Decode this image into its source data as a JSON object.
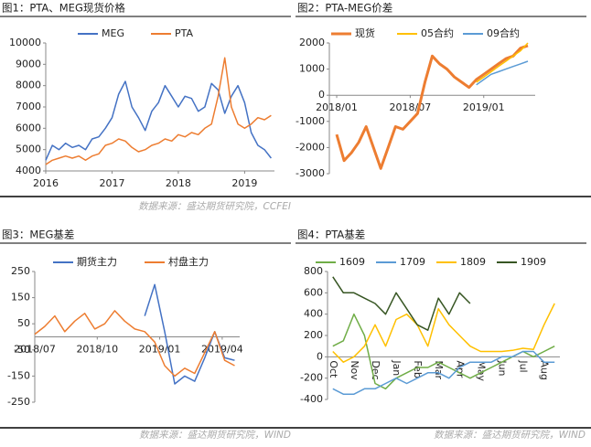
{
  "chart_data": [
    {
      "type": "line",
      "title": "图1：PTA、MEG现货价格",
      "source": "数据来源：盛达期货研究院，CCFEI",
      "x": [
        2016.0,
        2016.1,
        2016.2,
        2016.3,
        2016.4,
        2016.5,
        2016.6,
        2016.7,
        2016.8,
        2016.9,
        2017.0,
        2017.1,
        2017.2,
        2017.3,
        2017.4,
        2017.5,
        2017.6,
        2017.7,
        2017.8,
        2017.9,
        2018.0,
        2018.1,
        2018.2,
        2018.3,
        2018.4,
        2018.5,
        2018.6,
        2018.7,
        2018.8,
        2018.9,
        2019.0,
        2019.1,
        2019.2,
        2019.3,
        2019.4
      ],
      "series": [
        {
          "name": "MEG",
          "color": "#4472c4",
          "values": [
            4500,
            5200,
            5000,
            5300,
            5100,
            5200,
            5000,
            5500,
            5600,
            6000,
            6500,
            7600,
            8200,
            7000,
            6500,
            5900,
            6800,
            7200,
            8000,
            7500,
            7000,
            7500,
            7400,
            6800,
            7000,
            8100,
            7800,
            6700,
            7500,
            8000,
            7200,
            5800,
            5200,
            5000,
            4600
          ]
        },
        {
          "name": "PTA",
          "color": "#ed7d31",
          "values": [
            4300,
            4500,
            4600,
            4700,
            4600,
            4700,
            4500,
            4700,
            4800,
            5200,
            5300,
            5500,
            5400,
            5100,
            4900,
            5000,
            5200,
            5300,
            5500,
            5400,
            5700,
            5600,
            5800,
            5700,
            6000,
            6200,
            7500,
            9300,
            7000,
            6200,
            6000,
            6200,
            6500,
            6400,
            6600
          ]
        }
      ],
      "xlim": [
        2016.0,
        2019.45
      ],
      "xticks": [
        2016,
        2017,
        2018,
        2019
      ],
      "ylim": [
        4000,
        10000
      ],
      "yticks": [
        4000,
        5000,
        6000,
        7000,
        8000,
        9000,
        10000
      ],
      "xaxis_at": "bottom"
    },
    {
      "type": "line",
      "title": "图2：PTA-MEG价差",
      "x": [
        2018.0,
        2018.05,
        2018.1,
        2018.15,
        2018.2,
        2018.25,
        2018.3,
        2018.35,
        2018.4,
        2018.45,
        2018.5,
        2018.55,
        2018.6,
        2018.65,
        2018.7,
        2018.75,
        2018.8,
        2018.85,
        2018.9,
        2018.95,
        2019.0,
        2019.05,
        2019.1,
        2019.15,
        2019.2,
        2019.25,
        2019.3
      ],
      "series": [
        {
          "name": "现货",
          "color": "#ed7d31",
          "line_width": 3,
          "values": [
            -1500,
            -2500,
            -2200,
            -1800,
            -1200,
            -2000,
            -2800,
            -2000,
            -1200,
            -1300,
            -1000,
            -700,
            500,
            1500,
            1200,
            1000,
            700,
            500,
            300,
            600,
            800,
            1000,
            1200,
            1400,
            1500,
            1800,
            1900
          ]
        },
        {
          "name": "05合约",
          "color": "#ffc000",
          "values": [
            null,
            null,
            null,
            null,
            null,
            null,
            null,
            null,
            null,
            null,
            null,
            null,
            null,
            null,
            null,
            null,
            null,
            null,
            null,
            500,
            700,
            900,
            1100,
            1300,
            1500,
            1700,
            2000
          ]
        },
        {
          "name": "09合约",
          "color": "#5b9bd5",
          "values": [
            null,
            null,
            null,
            null,
            null,
            null,
            null,
            null,
            null,
            null,
            null,
            null,
            null,
            null,
            null,
            null,
            null,
            null,
            null,
            400,
            600,
            800,
            900,
            1000,
            1100,
            1200,
            1300
          ]
        }
      ],
      "xlim": [
        2017.95,
        2019.35
      ],
      "xticks": [
        {
          "value": 2018.0,
          "label": "2018/01"
        },
        {
          "value": 2018.5,
          "label": "2018/07"
        },
        {
          "value": 2019.0,
          "label": "2019/01"
        }
      ],
      "ylim": [
        -3000,
        2000
      ],
      "yticks": [
        -3000,
        -2000,
        -1000,
        0,
        1000,
        2000
      ],
      "xaxis_at": "zero"
    },
    {
      "type": "line",
      "title": "图3：MEG基差",
      "source": "数据来源：盛达期货研究院，WIND",
      "x": [
        2018.5,
        2018.54,
        2018.58,
        2018.62,
        2018.66,
        2018.7,
        2018.74,
        2018.78,
        2018.82,
        2018.86,
        2018.9,
        2018.94,
        2018.98,
        2019.02,
        2019.06,
        2019.1,
        2019.14,
        2019.18,
        2019.22,
        2019.26,
        2019.3
      ],
      "series": [
        {
          "name": "期货主力",
          "color": "#4472c4",
          "values": [
            null,
            null,
            null,
            null,
            null,
            null,
            null,
            null,
            null,
            null,
            null,
            80,
            200,
            20,
            -180,
            -150,
            -170,
            -80,
            20,
            -80,
            -90
          ]
        },
        {
          "name": "村盘主力",
          "color": "#ed7d31",
          "values": [
            10,
            40,
            80,
            20,
            60,
            90,
            30,
            50,
            100,
            60,
            30,
            20,
            -20,
            -110,
            -150,
            -120,
            -140,
            -60,
            20,
            -90,
            -110
          ]
        }
      ],
      "xlim": [
        2018.5,
        2019.32
      ],
      "xticks": [
        {
          "value": 2018.5,
          "label": "2018/07"
        },
        {
          "value": 2018.75,
          "label": "2018/10"
        },
        {
          "value": 2019.0,
          "label": "2019/01"
        },
        {
          "value": 2019.25,
          "label": "2019/04"
        }
      ],
      "ylim": [
        -250,
        250
      ],
      "yticks": [
        -250,
        -150,
        -50,
        50,
        150,
        250
      ],
      "xaxis_at": "zero"
    },
    {
      "type": "line",
      "title": "图4：PTA基差",
      "source": "数据来源：盛达期货研究院，WIND",
      "categories": [
        "Oct",
        null,
        "Nov",
        null,
        "Dec",
        null,
        "Jan",
        null,
        "Feb",
        null,
        "Mar",
        null,
        "Apr",
        null,
        "May",
        null,
        "Jun",
        null,
        "Jul",
        null,
        "Aug",
        null
      ],
      "series": [
        {
          "name": "1609",
          "color": "#70ad47",
          "values": [
            100,
            150,
            400,
            200,
            -250,
            -300,
            -200,
            -150,
            -100,
            -100,
            -50,
            -100,
            -150,
            -200,
            -150,
            -100,
            -50,
            0,
            50,
            0,
            50,
            100
          ]
        },
        {
          "name": "1709",
          "color": "#5b9bd5",
          "values": [
            -300,
            -350,
            -350,
            -300,
            -300,
            -250,
            -200,
            -250,
            -200,
            -150,
            -150,
            -200,
            -100,
            -50,
            -50,
            -50,
            0,
            0,
            50,
            50,
            -50,
            -50
          ]
        },
        {
          "name": "1809",
          "color": "#ffc000",
          "values": [
            50,
            -50,
            0,
            100,
            300,
            100,
            350,
            400,
            300,
            100,
            450,
            300,
            200,
            100,
            50,
            50,
            50,
            60,
            80,
            70,
            300,
            500
          ]
        },
        {
          "name": "1909",
          "color": "#375623",
          "values": [
            750,
            600,
            600,
            550,
            500,
            400,
            600,
            450,
            300,
            250,
            550,
            400,
            600,
            500,
            null,
            null,
            null,
            null,
            null,
            null,
            null,
            null
          ]
        }
      ],
      "ylim": [
        -400,
        800
      ],
      "yticks": [
        -400,
        -200,
        0,
        200,
        400,
        600,
        800
      ],
      "xaxis_at": "zero",
      "x_label_rotation": 90
    }
  ]
}
